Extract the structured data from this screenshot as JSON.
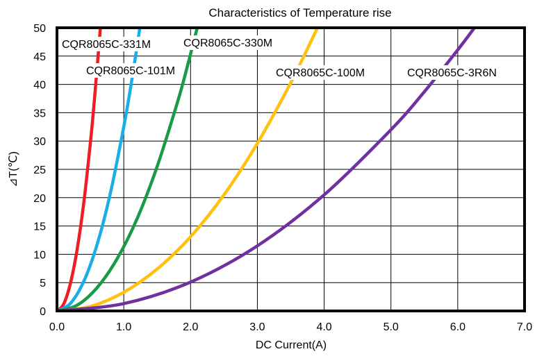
{
  "chart_data": {
    "type": "line",
    "title": "Characteristics of Temperature rise",
    "xlabel": "DC Current(A)",
    "ylabel": "⊿T(℃)",
    "xlim": [
      0,
      7
    ],
    "ylim": [
      0,
      50
    ],
    "grid": true,
    "x_ticks": [
      "0.0",
      "1.0",
      "2.0",
      "3.0",
      "4.0",
      "5.0",
      "6.0",
      "7.0"
    ],
    "y_ticks": [
      "0",
      "5",
      "10",
      "15",
      "20",
      "25",
      "30",
      "35",
      "40",
      "45",
      "50"
    ],
    "series": [
      {
        "name": "CQR8065C-331M",
        "color": "#ee1c25",
        "x": [
          0.0,
          0.1,
          0.2,
          0.3,
          0.4,
          0.5,
          0.55,
          0.6,
          0.65
        ],
        "y": [
          0,
          1.2,
          4.8,
          10.7,
          19.0,
          29.7,
          35.9,
          42.8,
          50
        ]
      },
      {
        "name": "CQR8065C-101M",
        "color": "#1aaee8",
        "x": [
          0.0,
          0.2,
          0.4,
          0.6,
          0.8,
          1.0,
          1.1,
          1.2,
          1.24
        ],
        "y": [
          0,
          1.3,
          5.2,
          11.7,
          20.8,
          32.5,
          39.3,
          46.8,
          50
        ]
      },
      {
        "name": "CQR8065C-330M",
        "color": "#1a9a46",
        "x": [
          0.0,
          0.3,
          0.6,
          0.9,
          1.2,
          1.5,
          1.8,
          1.95,
          2.1
        ],
        "y": [
          0,
          1.0,
          4.1,
          9.2,
          16.3,
          25.5,
          36.7,
          43.1,
          50
        ]
      },
      {
        "name": "CQR8065C-100M",
        "color": "#ffc010",
        "x": [
          0.0,
          0.5,
          1.0,
          1.5,
          2.0,
          2.5,
          3.0,
          3.5,
          3.9
        ],
        "y": [
          0,
          0.8,
          3.3,
          7.4,
          13.1,
          20.5,
          29.6,
          40.3,
          50
        ]
      },
      {
        "name": "CQR8065C-3R6N",
        "color": "#7030a0",
        "x": [
          0.0,
          1.0,
          2.0,
          3.0,
          4.0,
          5.0,
          5.5,
          6.0,
          6.25
        ],
        "y": [
          0,
          1.3,
          5.1,
          11.5,
          20.5,
          32.0,
          38.7,
          46.1,
          50
        ]
      }
    ]
  }
}
